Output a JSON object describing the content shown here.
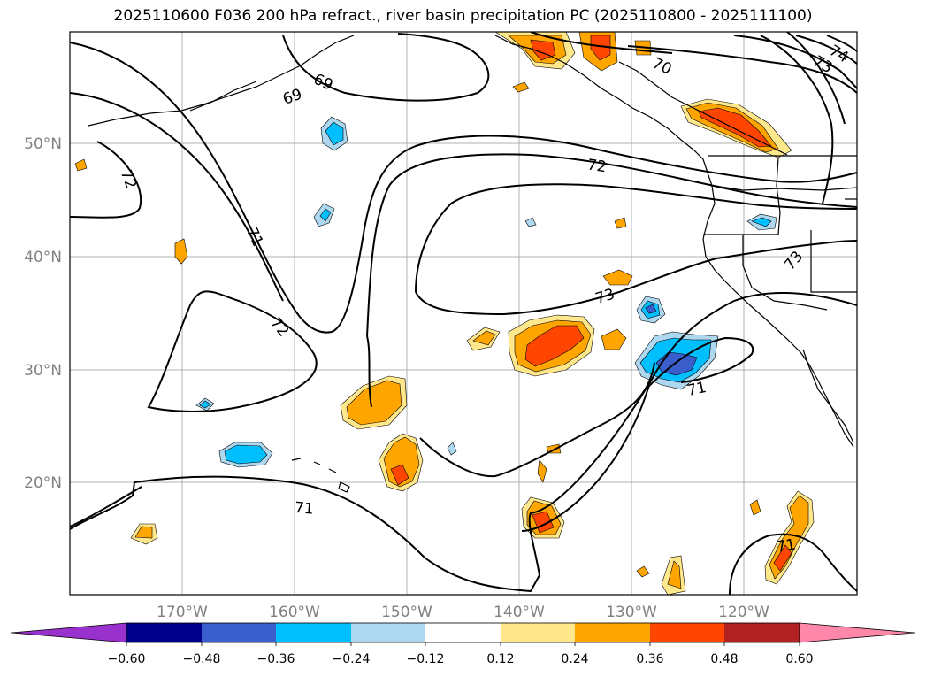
{
  "title": "2025110600 F036 200 hPa refract., river basin precipitation PC (2025110800 - 2025111100)",
  "map": {
    "lat_labels": [
      "50°N",
      "40°N",
      "30°N",
      "20°N"
    ],
    "lon_labels": [
      "170°W",
      "160°W",
      "150°W",
      "140°W",
      "130°W",
      "120°W"
    ],
    "contour_labels": [
      "69",
      "69",
      "70",
      "73",
      "74",
      "72",
      "72",
      "71",
      "72",
      "73",
      "73",
      "71",
      "71",
      "71"
    ],
    "grid": true
  },
  "colorbar": {
    "ticks": [
      "−0.60",
      "−0.48",
      "−0.36",
      "−0.24",
      "−0.12",
      "0.12",
      "0.24",
      "0.36",
      "0.48",
      "0.60"
    ],
    "colors": [
      "#9932cc",
      "#00008b",
      "#3a5fcd",
      "#00bfff",
      "#add8f0",
      "#ffffff",
      "#ffe88c",
      "#ffa500",
      "#ff4500",
      "#b22222",
      "#ff88aa"
    ],
    "extend": "both"
  }
}
